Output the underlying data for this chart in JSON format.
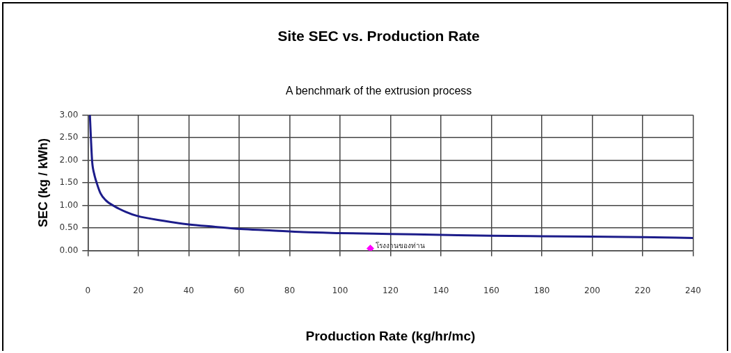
{
  "chart_data": {
    "type": "line",
    "title": "Site SEC vs. Production Rate",
    "subtitle": "A benchmark of the extrusion process",
    "xlabel": "Production Rate (kg/hr/mc)",
    "ylabel": "SEC (kg / kWh)",
    "series": [
      {
        "color": "#1c1c8a",
        "marker": "none",
        "x": [
          0.8,
          1.2,
          1.7,
          2.5,
          3.5,
          5,
          7,
          10.6,
          15,
          19.5,
          30,
          40,
          50,
          60.5,
          72,
          85.5,
          100,
          120,
          140,
          160,
          180,
          200,
          220,
          240
        ],
        "values": [
          3.0,
          2.5,
          1.97,
          1.7,
          1.5,
          1.27,
          1.12,
          0.98,
          0.86,
          0.77,
          0.66,
          0.58,
          0.53,
          0.48,
          0.45,
          0.41,
          0.39,
          0.37,
          0.35,
          0.33,
          0.32,
          0.31,
          0.3,
          0.28
        ]
      },
      {
        "type": "scatter",
        "color": "#ff00ff",
        "marker": "diamond",
        "x": [
          112
        ],
        "values": [
          0.05
        ]
      }
    ],
    "annotations": [
      {
        "text": "โรงงานของท่าน",
        "x": 112,
        "y": 0.05
      }
    ],
    "xlim": [
      0,
      240
    ],
    "xticks": [
      0,
      20,
      40,
      60,
      80,
      100,
      120,
      140,
      160,
      180,
      200,
      220,
      240
    ],
    "ylim": [
      0,
      3
    ],
    "yticks": [
      {
        "value": 0,
        "label": "0.00"
      },
      {
        "value": 0.5,
        "label": "0.50"
      },
      {
        "value": 1,
        "label": "1.00"
      },
      {
        "value": 1.5,
        "label": "1.50"
      },
      {
        "value": 2,
        "label": "2.00"
      },
      {
        "value": 2.5,
        "label": "2.50"
      },
      {
        "value": 3,
        "label": "3.00"
      }
    ],
    "grid": true,
    "legend": false
  }
}
